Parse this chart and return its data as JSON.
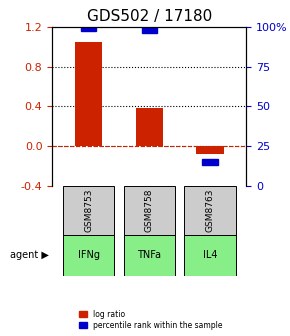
{
  "title": "GDS502 / 17180",
  "categories": [
    "IFNg",
    "TNFa",
    "IL4"
  ],
  "sample_labels": [
    "GSM8753",
    "GSM8758",
    "GSM8763"
  ],
  "log_ratios": [
    1.05,
    0.38,
    -0.08
  ],
  "percentile_ranks": [
    99,
    98,
    15
  ],
  "bar_color": "#cc2200",
  "pct_color": "#0000cc",
  "left_ylim": [
    -0.4,
    1.2
  ],
  "right_ylim": [
    0,
    100
  ],
  "left_yticks": [
    -0.4,
    0.0,
    0.4,
    0.8,
    1.2
  ],
  "right_yticks": [
    0,
    25,
    50,
    75,
    100
  ],
  "right_yticklabels": [
    "0",
    "25",
    "50",
    "75",
    "100%"
  ],
  "dotted_lines": [
    0.0,
    0.4,
    0.8
  ],
  "zero_line_color": "#cc2200",
  "agent_label": "agent",
  "agent_color": "#555555",
  "sample_box_color": "#cccccc",
  "agent_box_colors": [
    "#aaffaa",
    "#aaffaa",
    "#aaffaa"
  ],
  "legend_log_label": "log ratio",
  "legend_pct_label": "percentile rank within the sample",
  "title_fontsize": 11,
  "tick_fontsize": 8,
  "label_fontsize": 8
}
